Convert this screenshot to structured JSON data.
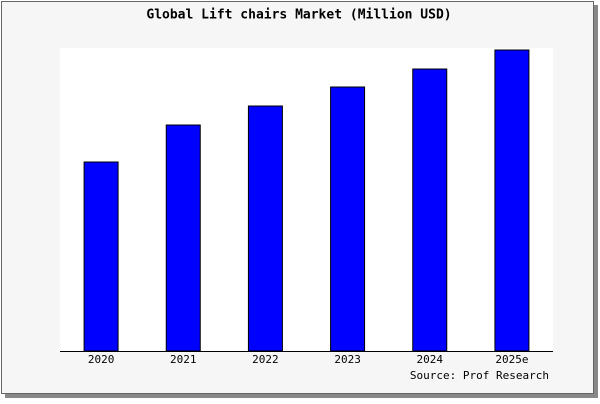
{
  "chart_data": {
    "type": "bar",
    "title": "Global Lift chairs Market (Million USD)",
    "categories": [
      "2020",
      "2021",
      "2022",
      "2023",
      "2024",
      "2025e"
    ],
    "values": [
      189,
      226,
      245,
      264,
      282,
      301
    ],
    "color": "#0000ff",
    "source": "Source: Prof Research"
  }
}
